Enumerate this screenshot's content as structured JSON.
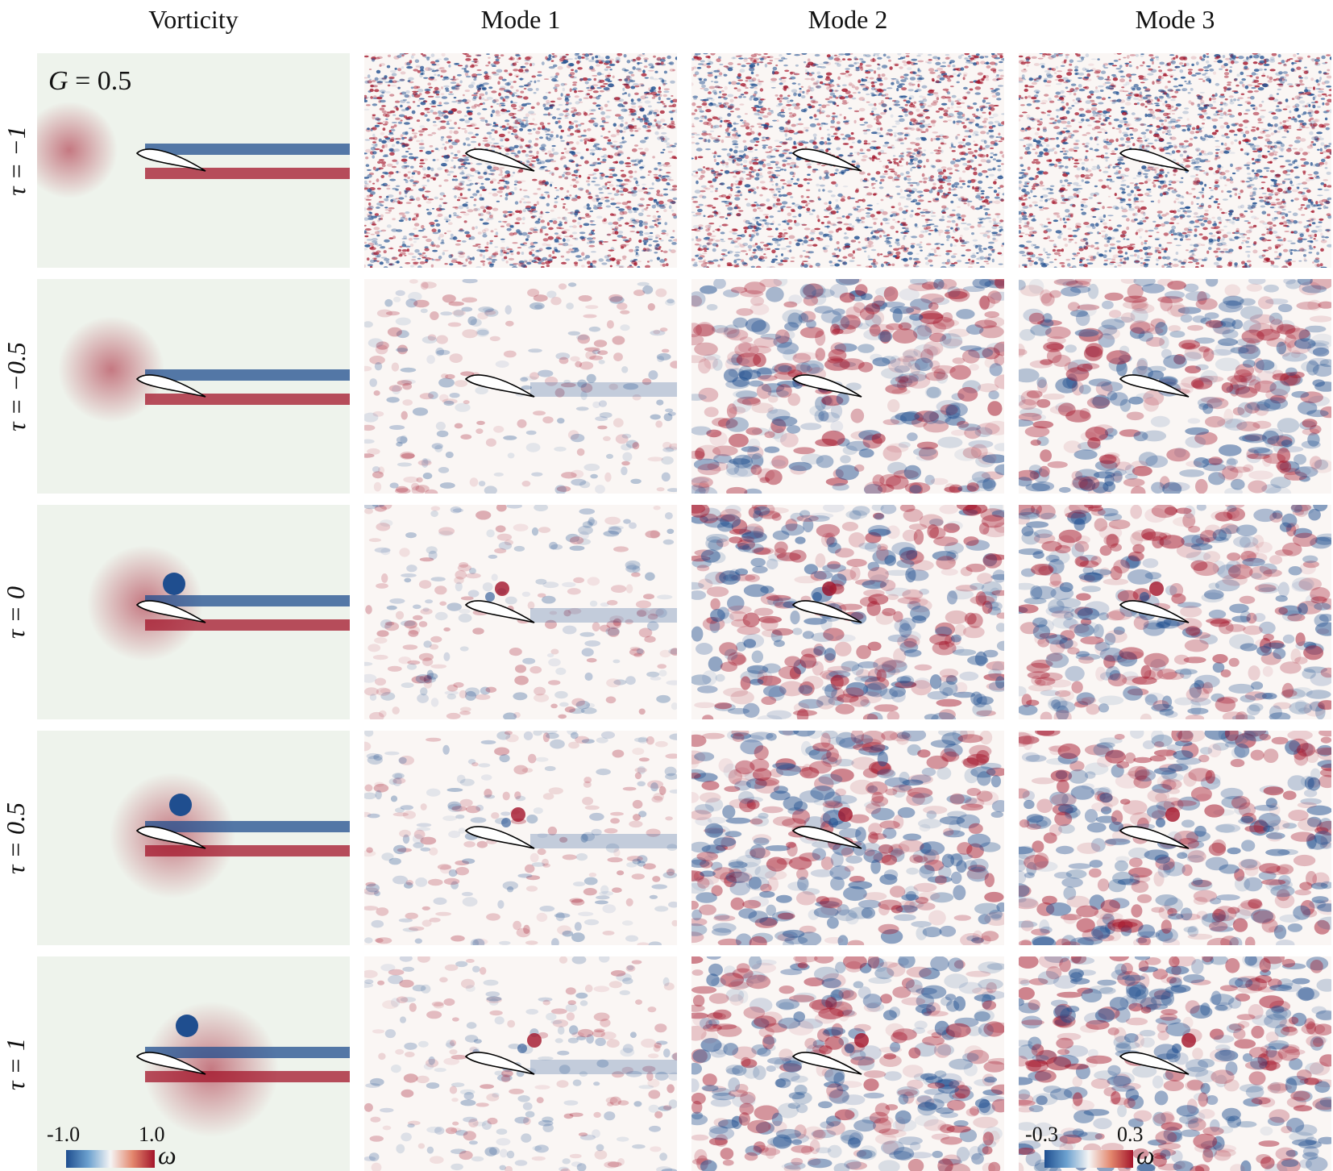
{
  "columns": [
    "Vorticity",
    "Mode 1",
    "Mode 2",
    "Mode 3"
  ],
  "rows": [
    {
      "tau_label": "τ = −1"
    },
    {
      "tau_label": "τ = −0.5"
    },
    {
      "tau_label": "τ = 0"
    },
    {
      "tau_label": "τ = 0.5"
    },
    {
      "tau_label": "τ = 1"
    }
  ],
  "gust_label": {
    "symbol": "G",
    "value": "= 0.5"
  },
  "colorbars": {
    "vorticity": {
      "min_label": "-1.0",
      "max_label": "1.0",
      "symbol": "ω"
    },
    "modes": {
      "min_label": "-0.3",
      "max_label": "0.3",
      "symbol": "ω"
    }
  },
  "colors": {
    "negative": "#1f4e8f",
    "positive": "#a3142a",
    "background": "#eef3ec"
  }
}
